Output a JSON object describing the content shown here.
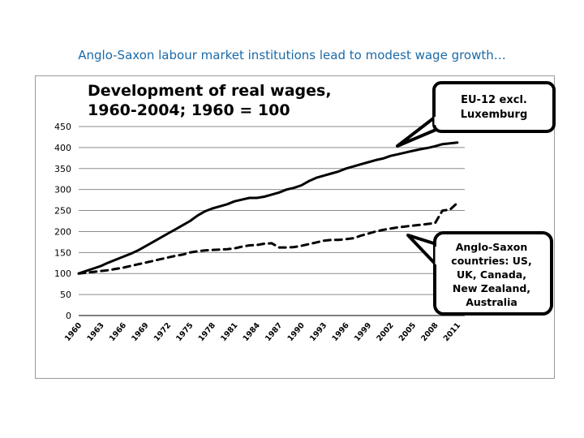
{
  "headline": "Anglo-Saxon labour market institutions lead to modest wage growth…",
  "chart_data": {
    "type": "line",
    "title_lines": [
      "Development of real wages,",
      "1960-2004; 1960 = 100"
    ],
    "ylim": [
      0,
      450
    ],
    "yticks": [
      0,
      50,
      100,
      150,
      200,
      250,
      300,
      350,
      400,
      450
    ],
    "xlim": [
      1960,
      2012
    ],
    "xticks": [
      "1960",
      "1963",
      "1966",
      "1969",
      "1972",
      "1975",
      "1978",
      "1981",
      "1984",
      "1987",
      "1990",
      "1993",
      "1996",
      "1999",
      "2002",
      "2005",
      "2008",
      "2011"
    ],
    "grid": true,
    "series": [
      {
        "name": "EU-12 excl. Luxemburg",
        "style": "solid",
        "color": "#000000",
        "x": [
          1960,
          1961,
          1962,
          1963,
          1964,
          1965,
          1966,
          1967,
          1968,
          1969,
          1970,
          1971,
          1972,
          1973,
          1974,
          1975,
          1976,
          1977,
          1978,
          1979,
          1980,
          1981,
          1982,
          1983,
          1984,
          1985,
          1986,
          1987,
          1988,
          1989,
          1990,
          1991,
          1992,
          1993,
          1994,
          1995,
          1996,
          1997,
          1998,
          1999,
          2000,
          2001,
          2002,
          2003,
          2004,
          2005,
          2006,
          2007,
          2008,
          2009,
          2010,
          2011
        ],
        "values": [
          100,
          106,
          112,
          118,
          126,
          133,
          140,
          147,
          155,
          165,
          175,
          185,
          195,
          205,
          215,
          225,
          238,
          248,
          255,
          260,
          265,
          272,
          276,
          280,
          280,
          283,
          288,
          293,
          300,
          304,
          310,
          320,
          328,
          333,
          338,
          343,
          350,
          355,
          360,
          365,
          370,
          374,
          380,
          384,
          388,
          392,
          396,
          399,
          403,
          408,
          410,
          412
        ]
      },
      {
        "name": "Anglo-Saxon countries: US, UK, Canada, New Zealand, Australia",
        "style": "dashed",
        "color": "#000000",
        "x": [
          1960,
          1961,
          1962,
          1963,
          1964,
          1965,
          1966,
          1967,
          1968,
          1969,
          1970,
          1971,
          1972,
          1973,
          1974,
          1975,
          1976,
          1977,
          1978,
          1979,
          1980,
          1981,
          1982,
          1983,
          1984,
          1985,
          1986,
          1987,
          1988,
          1989,
          1990,
          1991,
          1992,
          1993,
          1994,
          1995,
          1996,
          1997,
          1998,
          1999,
          2000,
          2001,
          2002,
          2003,
          2004,
          2005,
          2006,
          2007,
          2008,
          2009,
          2010,
          2011
        ],
        "values": [
          100,
          102,
          104,
          106,
          108,
          111,
          114,
          118,
          122,
          126,
          130,
          134,
          138,
          142,
          145,
          150,
          153,
          155,
          156,
          157,
          158,
          160,
          164,
          167,
          168,
          171,
          172,
          162,
          162,
          163,
          166,
          170,
          174,
          178,
          180,
          180,
          182,
          184,
          190,
          195,
          200,
          204,
          207,
          210,
          212,
          214,
          216,
          218,
          220,
          250,
          252,
          268
        ]
      }
    ],
    "callouts": [
      {
        "lines": [
          "EU-12 excl.",
          "Luxemburg"
        ]
      },
      {
        "lines": [
          "Anglo-Saxon",
          "countries: US,",
          "UK, Canada,",
          "New Zealand,",
          "Australia"
        ]
      }
    ]
  }
}
